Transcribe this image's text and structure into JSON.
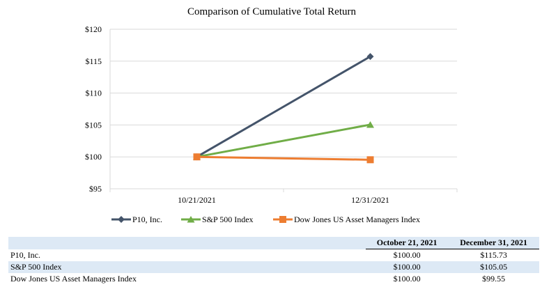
{
  "chart_data": {
    "type": "line",
    "title": "Comparison of Cumulative Total Return",
    "categories": [
      "10/21/2021",
      "12/31/2021"
    ],
    "y_ticks": [
      "$95",
      "$100",
      "$105",
      "$110",
      "$115",
      "$120"
    ],
    "ylim": [
      95,
      120
    ],
    "grid": true,
    "legend_position": "bottom",
    "series": [
      {
        "name": "P10, Inc.",
        "values": [
          100.0,
          115.73
        ],
        "color": "#44546a",
        "marker": "diamond"
      },
      {
        "name": "S&P 500 Index",
        "values": [
          100.0,
          105.05
        ],
        "color": "#70ad47",
        "marker": "triangle"
      },
      {
        "name": "Dow Jones US Asset Managers Index",
        "values": [
          100.0,
          99.55
        ],
        "color": "#ed7d31",
        "marker": "square"
      }
    ]
  },
  "table": {
    "headers": [
      "",
      "October 21, 2021",
      "December 31, 2021"
    ],
    "rows": [
      {
        "name": "P10, Inc.",
        "v1": "$100.00",
        "v2": "$115.73"
      },
      {
        "name": "S&P 500 Index",
        "v1": "$100.00",
        "v2": "$105.05"
      },
      {
        "name": "Dow Jones US Asset Managers Index",
        "v1": "$100.00",
        "v2": "$99.55"
      }
    ]
  }
}
